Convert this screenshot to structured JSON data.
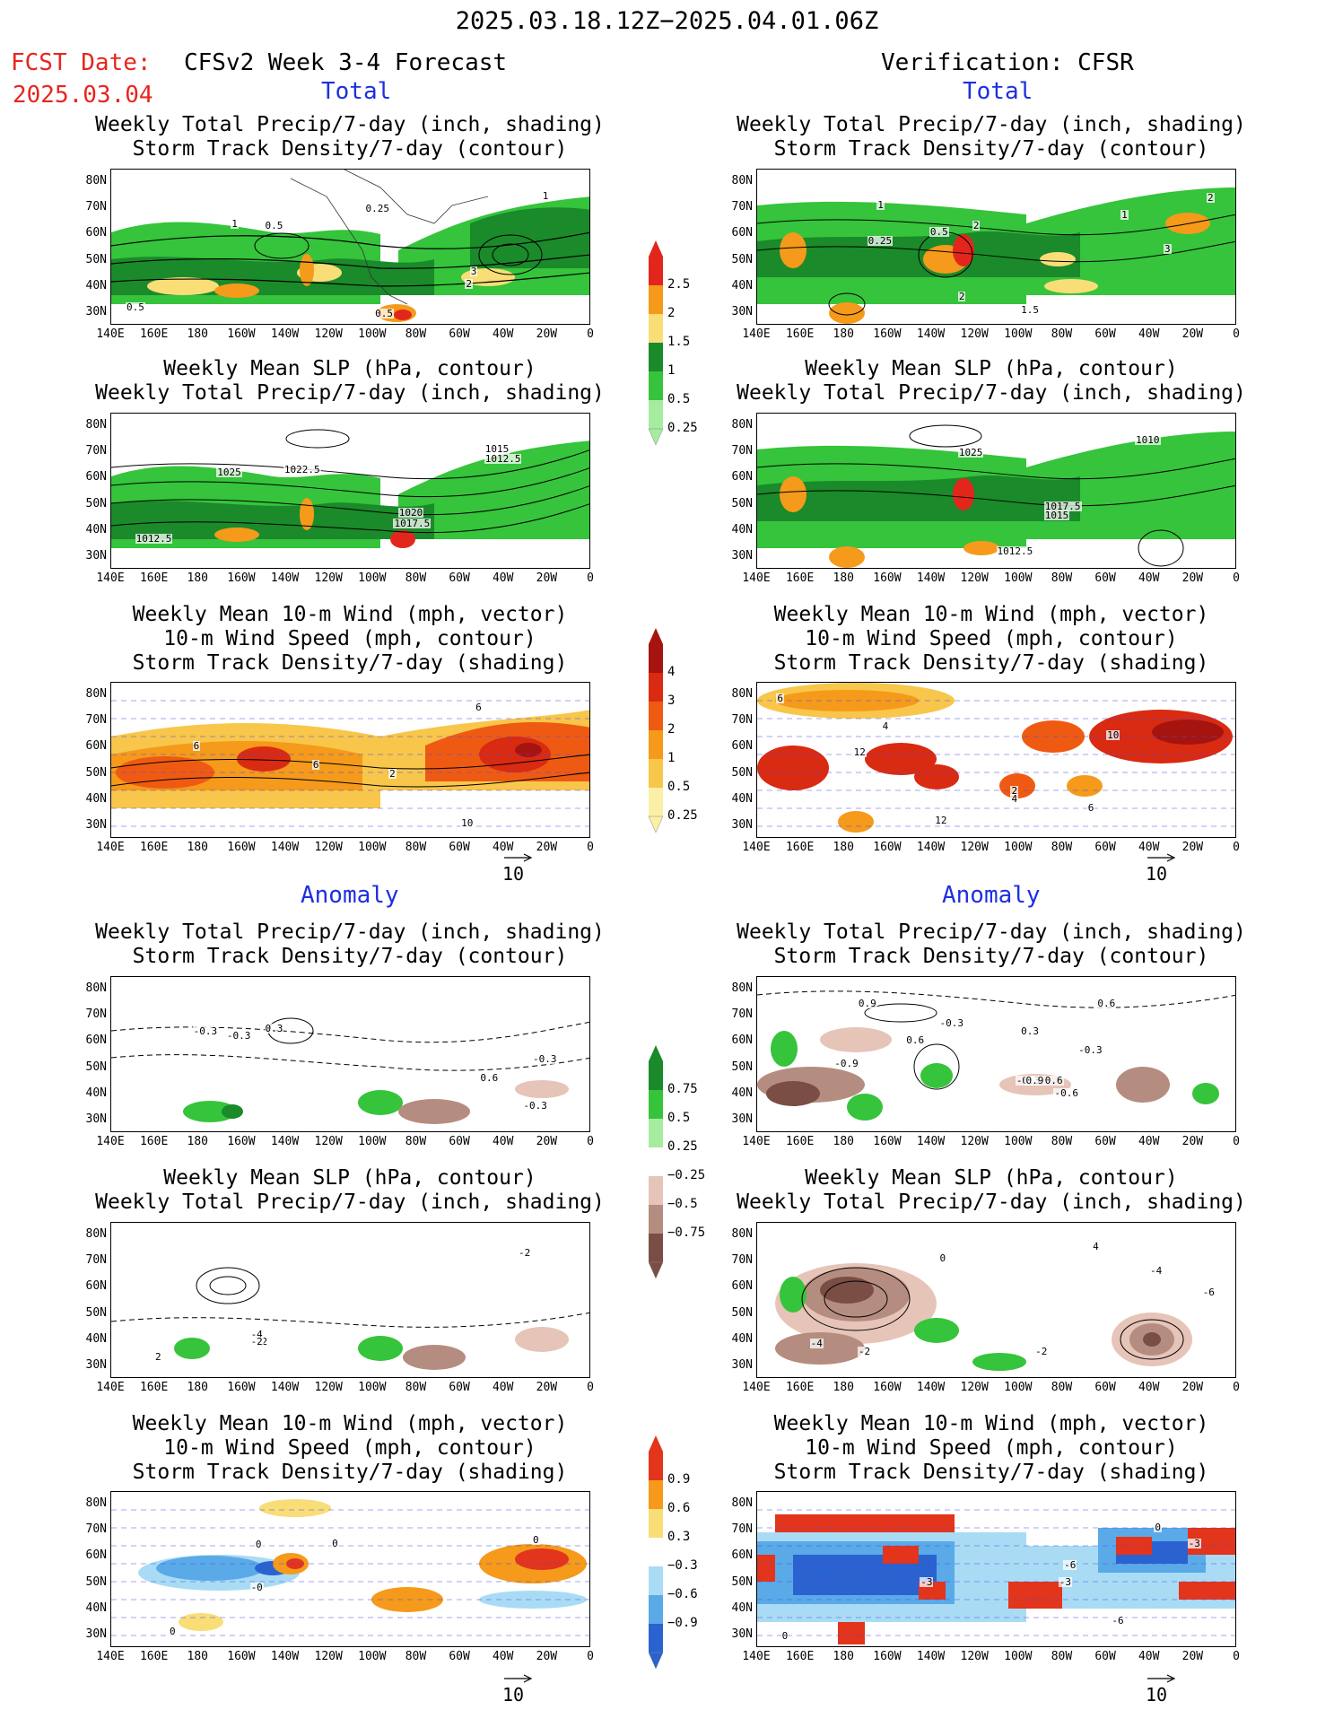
{
  "header": {
    "period": "2025.03.18.12Z−2025.04.01.06Z",
    "fcst_date_label": "FCST Date:",
    "fcst_date": "2025.03.04",
    "model_title": "CFSv2 Week 3-4 Forecast",
    "verification_title": "Verification: CFSR"
  },
  "sections": {
    "total": "Total",
    "anomaly": "Anomaly"
  },
  "panel_titles": {
    "precip_storm": [
      "Weekly Total Precip/7-day (inch, shading)",
      "Storm Track Density/7-day (contour)"
    ],
    "slp_precip": [
      "Weekly Mean SLP (hPa, contour)",
      "Weekly Total Precip/7-day (inch, shading)"
    ],
    "wind_storm": [
      "Weekly Mean 10-m Wind (mph, vector)",
      "10-m Wind Speed (mph, contour)",
      "Storm Track Density/7-day (shading)"
    ]
  },
  "axes": {
    "lat_labels": [
      "80N",
      "70N",
      "60N",
      "50N",
      "40N",
      "30N"
    ],
    "lon_labels": [
      "140E",
      "160E",
      "180",
      "160W",
      "140W",
      "120W",
      "100W",
      "80W",
      "60W",
      "40W",
      "20W",
      "0"
    ]
  },
  "vector_reference": "10",
  "colorbars": {
    "precip_total": {
      "labels": [
        "2.5",
        "2",
        "1.5",
        "1",
        "0.5",
        "0.25"
      ],
      "colors": [
        "#e3261c",
        "#f59a1a",
        "#f9dd77",
        "#1a8a2a",
        "#35c43b",
        "#a6ec9f"
      ]
    },
    "storm_total": {
      "labels": [
        "4",
        "3",
        "2",
        "1",
        "0.5",
        "0.25"
      ],
      "colors": [
        "#a61410",
        "#d92a12",
        "#ef5a12",
        "#f59a1a",
        "#f8c64a",
        "#fbf0a6"
      ]
    },
    "precip_anom": {
      "labels": [
        "0.75",
        "0.5",
        "0.25",
        "−0.25",
        "−0.5",
        "−0.75"
      ],
      "colors": [
        "#1a8a2a",
        "#35c43b",
        "#a6ec9f",
        "#ffffff",
        "#e6c4b8",
        "#b58d80",
        "#7a4e44"
      ]
    },
    "storm_anom": {
      "labels": [
        "0.9",
        "0.6",
        "0.3",
        "−0.3",
        "−0.6",
        "−0.9"
      ],
      "colors": [
        "#e3341c",
        "#f59a1a",
        "#f9dd77",
        "#ffffff",
        "#a9dcf4",
        "#5aaae8",
        "#2a62d0"
      ]
    }
  },
  "contour_labels": {
    "p1": [
      "1",
      "0.5",
      "0.25",
      "1",
      "3",
      "2",
      "0.5",
      "0.5"
    ],
    "p2": [
      "1",
      "0.25",
      "0.5",
      "1",
      "2",
      "2",
      "1.5",
      "3",
      "2"
    ],
    "p3": [
      "1025",
      "1022.5",
      "1015",
      "1012.5",
      "1020",
      "1017.5",
      "1012.5"
    ],
    "p4": [
      "1025",
      "1010",
      "1017.5",
      "1015",
      "1012.5"
    ],
    "p5": [
      "6",
      "2",
      "10",
      "6",
      "6"
    ],
    "p6": [
      "6",
      "4",
      "10",
      "12",
      "12",
      "2",
      "4",
      "6"
    ],
    "p7": [
      "-0.3",
      "-0.3",
      "0.3",
      "0.6",
      "-0.3",
      "-0.3"
    ],
    "p8": [
      "0.9",
      "-0.3",
      "0.6",
      "-0.9",
      "0.3",
      "0.6",
      "-0.3",
      "-0.3",
      "0.9",
      "0.6",
      "-0.6"
    ],
    "p9": [
      "-4",
      "-2",
      "2",
      "-2",
      "-2"
    ],
    "p10": [
      "-4",
      "-6",
      "4",
      "-2",
      "0",
      "-2",
      "-4"
    ],
    "p11": [
      "0",
      "0",
      "-0",
      "0",
      "0"
    ],
    "p12": [
      "0",
      "-3",
      "-6",
      "0",
      "-3",
      "-3",
      "-6"
    ]
  }
}
